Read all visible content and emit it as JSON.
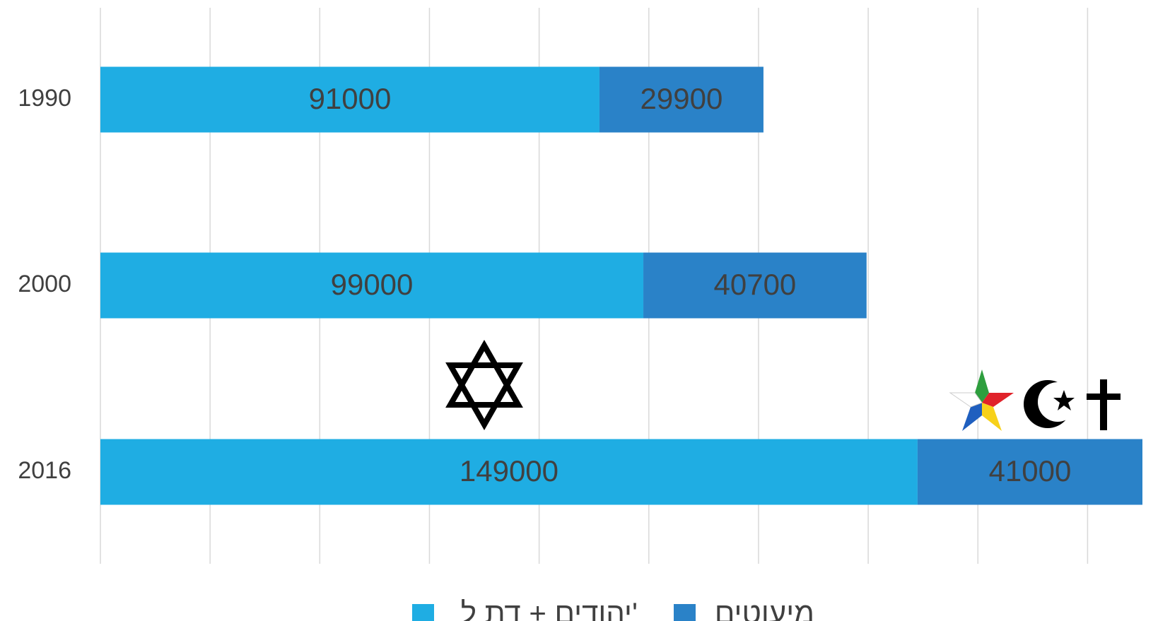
{
  "chart_data": {
    "type": "stacked_bar_horizontal",
    "categories": [
      "1990",
      "2000",
      "2016"
    ],
    "series": [
      {
        "name": "יהודים + דת ל'",
        "color": "#1fade3",
        "values": [
          91000,
          99000,
          149000
        ]
      },
      {
        "name": "מיעוטים",
        "color": "#2a82c8",
        "values": [
          29900,
          40700,
          41000
        ]
      }
    ],
    "xlim": [
      0,
      190000
    ],
    "xticks": [
      0,
      20000,
      40000,
      60000,
      80000,
      100000,
      120000,
      140000,
      160000,
      180000
    ],
    "grid": true,
    "legend": "bottom"
  }
}
